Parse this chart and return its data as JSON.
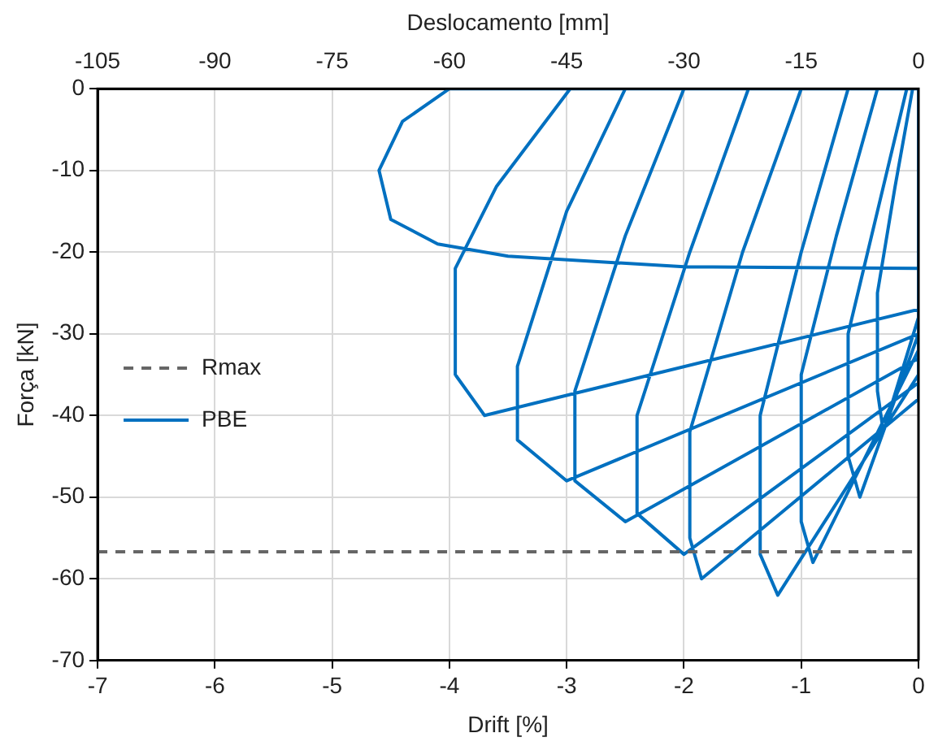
{
  "chart_data": {
    "type": "line",
    "xlabel": "Drift [%]",
    "x2label": "Deslocamento [mm]",
    "ylabel": "Força [kN]",
    "xlim": [
      -7,
      0
    ],
    "xticks": [
      -7,
      -6,
      -5,
      -4,
      -3,
      -2,
      -1,
      0
    ],
    "x2lim": [
      -105,
      0
    ],
    "x2ticks": [
      -105,
      -90,
      -75,
      -60,
      -45,
      -30,
      -15,
      0
    ],
    "ylim": [
      -70,
      0
    ],
    "yticks": [
      -70,
      -60,
      -50,
      -40,
      -30,
      -20,
      -10,
      0
    ],
    "grid": true,
    "legend": "left",
    "marker": "none",
    "line_style": "solid",
    "ref_lines": [
      {
        "axis": "y",
        "value": -56.7,
        "label": "Rmax",
        "color": "#666666",
        "line_style": "dashed"
      }
    ],
    "series": [
      {
        "name": "PBE",
        "color": "#0070c0",
        "x": [
          0,
          -0.05,
          -0.2,
          -0.35,
          -0.35,
          -0.3,
          0,
          0,
          -0.1,
          -0.35,
          -0.6,
          -0.6,
          -0.5,
          0,
          0,
          -0.35,
          -0.7,
          -1,
          -1,
          -0.9,
          0,
          0,
          -0.6,
          -1,
          -1.35,
          -1.35,
          -1.2,
          0,
          0,
          -1,
          -1.5,
          -1.95,
          -1.95,
          -1.85,
          0,
          0,
          -1.45,
          -1.95,
          -2.4,
          -2.4,
          -2,
          0,
          0,
          -2,
          -2.5,
          -2.93,
          -2.93,
          -2.5,
          0,
          0,
          -2.5,
          -3,
          -3.42,
          -3.42,
          -3,
          0,
          0,
          -2.97,
          -3.6,
          -3.95,
          -3.95,
          -3.7,
          0,
          0,
          -4,
          -4.4,
          -4.6,
          -4.5,
          -4.1,
          -3.5,
          -2,
          0
        ],
        "values": [
          0,
          0,
          -12,
          -25,
          -37,
          -42,
          -28,
          0,
          0,
          -15,
          -30,
          -45,
          -50,
          -30,
          0,
          0,
          -18,
          -35,
          -53,
          -58,
          -32,
          0,
          0,
          -20,
          -40,
          -57,
          -62,
          -35,
          0,
          0,
          -20,
          -42,
          -55,
          -60,
          -38,
          0,
          0,
          -20,
          -40,
          -52,
          -57,
          -36,
          0,
          0,
          -18,
          -37,
          -48,
          -53,
          -33,
          0,
          0,
          -15,
          -34,
          -43,
          -48,
          -30,
          0,
          0,
          -12,
          -22,
          -35,
          -40,
          -27,
          0,
          0,
          -4,
          -10,
          -16,
          -19,
          -20.5,
          -21.8,
          -22
        ]
      }
    ]
  }
}
